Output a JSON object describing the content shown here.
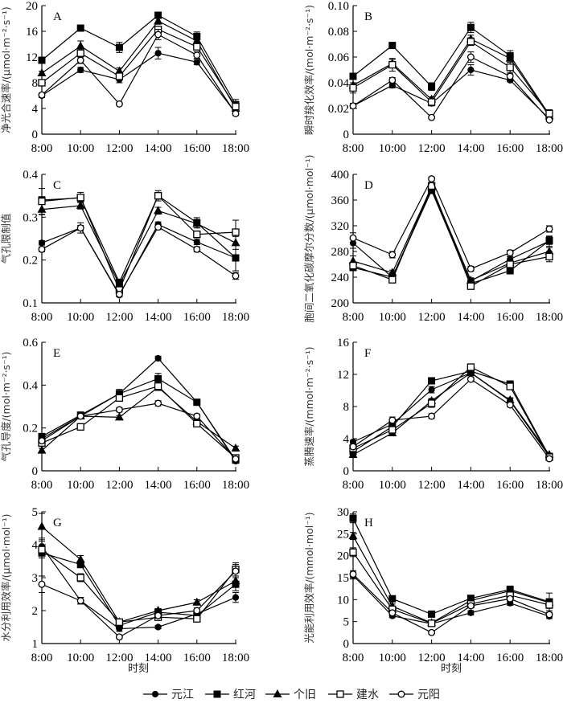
{
  "legend": [
    {
      "name": "元江",
      "marker": "filled-circle"
    },
    {
      "name": "红河",
      "marker": "filled-square"
    },
    {
      "name": "个旧",
      "marker": "filled-triangle"
    },
    {
      "name": "建水",
      "marker": "open-square"
    },
    {
      "name": "元阳",
      "marker": "open-circle"
    }
  ],
  "xlabel": "时刻",
  "chart_data": [
    {
      "type": "line",
      "panel": "A",
      "ylabel": "净光合速率/(μmol·m⁻²·s⁻¹)",
      "categories": [
        "8:00",
        "10:00",
        "12:00",
        "14:00",
        "16:00",
        "18:00"
      ],
      "ylim": [
        0,
        20
      ],
      "yticks": [
        0,
        4,
        8,
        12,
        16,
        20
      ],
      "ytick_labels": [
        "0",
        "4",
        "8",
        "12",
        "16",
        "20"
      ],
      "series": [
        {
          "name": "元江",
          "values": [
            6.0,
            10.0,
            8.5,
            12.6,
            11.2,
            3.3
          ],
          "errors": [
            0.3,
            0.4,
            0.5,
            0.9,
            0.4,
            0.3
          ]
        },
        {
          "name": "红河",
          "values": [
            11.5,
            16.5,
            13.5,
            18.5,
            15.2,
            4.6
          ],
          "errors": [
            0.3,
            0.4,
            0.8,
            0.5,
            0.7,
            0.8
          ]
        },
        {
          "name": "个旧",
          "values": [
            9.5,
            13.7,
            9.8,
            17.6,
            14.5,
            4.0
          ],
          "errors": [
            0.3,
            0.8,
            0.5,
            0.5,
            0.5,
            0.5
          ]
        },
        {
          "name": "建水",
          "values": [
            8.0,
            12.6,
            9.0,
            16.3,
            13.6,
            4.3
          ],
          "errors": [
            0.4,
            0.5,
            0.5,
            0.5,
            0.5,
            0.5
          ]
        },
        {
          "name": "元阳",
          "values": [
            6.1,
            11.5,
            4.7,
            15.5,
            12.3,
            3.2
          ],
          "errors": [
            0.3,
            0.5,
            0.2,
            0.8,
            0.5,
            0.3
          ]
        }
      ]
    },
    {
      "type": "line",
      "panel": "B",
      "ylabel": "瞬时羧化效率/(mol·m⁻²·s⁻¹)",
      "categories": [
        "8:00",
        "10:00",
        "12:00",
        "14:00",
        "16:00",
        "18:00"
      ],
      "ylim": [
        0,
        0.1
      ],
      "yticks": [
        0,
        0.02,
        0.04,
        0.06,
        0.08,
        0.1
      ],
      "ytick_labels": [
        "0",
        "0.02",
        "0.04",
        "0.06",
        "0.08",
        "0.10"
      ],
      "series": [
        {
          "name": "元江",
          "values": [
            0.022,
            0.038,
            0.024,
            0.05,
            0.042,
            0.012
          ],
          "errors": [
            0.002,
            0.002,
            0.002,
            0.004,
            0.001,
            0.002
          ]
        },
        {
          "name": "红河",
          "values": [
            0.045,
            0.069,
            0.037,
            0.083,
            0.061,
            0.015
          ],
          "errors": [
            0.002,
            0.002,
            0.003,
            0.004,
            0.004,
            0.003
          ]
        },
        {
          "name": "个旧",
          "values": [
            0.038,
            0.055,
            0.027,
            0.074,
            0.059,
            0.014
          ],
          "errors": [
            0.002,
            0.003,
            0.002,
            0.003,
            0.003,
            0.002
          ]
        },
        {
          "name": "建水",
          "values": [
            0.036,
            0.054,
            0.025,
            0.072,
            0.052,
            0.016
          ],
          "errors": [
            0.004,
            0.005,
            0.002,
            0.003,
            0.004,
            0.003
          ]
        },
        {
          "name": "元阳",
          "values": [
            0.022,
            0.042,
            0.013,
            0.06,
            0.045,
            0.011
          ],
          "errors": [
            0.002,
            0.002,
            0.001,
            0.004,
            0.002,
            0.001
          ]
        }
      ]
    },
    {
      "type": "line",
      "panel": "C",
      "ylabel": "气孔限制值",
      "categories": [
        "8:00",
        "10:00",
        "12:00",
        "14:00",
        "16:00",
        "18:00"
      ],
      "ylim": [
        0.1,
        0.4
      ],
      "yticks": [
        0.1,
        0.2,
        0.3,
        0.4
      ],
      "ytick_labels": [
        "0.1",
        "0.2",
        "0.3",
        "0.4"
      ],
      "series": [
        {
          "name": "元江",
          "values": [
            0.24,
            0.275,
            0.118,
            0.283,
            0.242,
            0.205
          ],
          "errors": [
            0.005,
            0.006,
            0.004,
            0.006,
            0.006,
            0.006
          ]
        },
        {
          "name": "红河",
          "values": [
            0.34,
            0.345,
            0.148,
            0.35,
            0.287,
            0.205
          ],
          "errors": [
            0.008,
            0.008,
            0.006,
            0.008,
            0.012,
            0.03
          ]
        },
        {
          "name": "个旧",
          "values": [
            0.318,
            0.327,
            0.143,
            0.315,
            0.285,
            0.24
          ],
          "errors": [
            0.012,
            0.008,
            0.006,
            0.008,
            0.01,
            0.015
          ]
        },
        {
          "name": "建水",
          "values": [
            0.337,
            0.346,
            0.13,
            0.35,
            0.26,
            0.265
          ],
          "errors": [
            0.03,
            0.012,
            0.005,
            0.012,
            0.008,
            0.028
          ]
        },
        {
          "name": "元阳",
          "values": [
            0.225,
            0.275,
            0.12,
            0.277,
            0.225,
            0.163
          ],
          "errors": [
            0.006,
            0.012,
            0.005,
            0.006,
            0.006,
            0.008
          ]
        }
      ]
    },
    {
      "type": "line",
      "panel": "D",
      "ylabel": "胞间二氧化碳摩尔分数/(μmol·mol⁻¹)",
      "categories": [
        "8:00",
        "10:00",
        "12:00",
        "14:00",
        "16:00",
        "18:00"
      ],
      "ylim": [
        200,
        400
      ],
      "yticks": [
        200,
        240,
        280,
        320,
        360,
        400
      ],
      "ytick_labels": [
        "200",
        "240",
        "280",
        "320",
        "360",
        "400"
      ],
      "series": [
        {
          "name": "元江",
          "values": [
            293,
            240,
            378,
            234,
            268,
            296
          ],
          "errors": [
            8,
            4,
            4,
            4,
            4,
            8
          ]
        },
        {
          "name": "红河",
          "values": [
            255,
            240,
            375,
            230,
            250,
            297
          ],
          "errors": [
            5,
            4,
            4,
            4,
            4,
            6
          ]
        },
        {
          "name": "个旧",
          "values": [
            265,
            247,
            380,
            235,
            262,
            280
          ],
          "errors": [
            8,
            4,
            4,
            4,
            4,
            6
          ]
        },
        {
          "name": "建水",
          "values": [
            258,
            236,
            382,
            226,
            260,
            272
          ],
          "errors": [
            5,
            4,
            4,
            4,
            4,
            8
          ]
        },
        {
          "name": "元阳",
          "values": [
            301,
            275,
            393,
            253,
            278,
            315
          ],
          "errors": [
            8,
            5,
            3,
            4,
            4,
            5
          ]
        }
      ]
    },
    {
      "type": "line",
      "panel": "E",
      "ylabel": "气孔导度/(mol·m⁻²·s⁻¹)",
      "categories": [
        "8:00",
        "10:00",
        "12:00",
        "14:00",
        "16:00",
        "18:00"
      ],
      "ylim": [
        0,
        0.6
      ],
      "yticks": [
        0,
        0.2,
        0.4,
        0.6
      ],
      "ytick_labels": [
        "0",
        "0.2",
        "0.4",
        "0.6"
      ],
      "series": [
        {
          "name": "元江",
          "values": [
            0.15,
            0.255,
            0.36,
            0.525,
            0.32,
            0.045
          ],
          "errors": [
            0.01,
            0.01,
            0.015,
            0.01,
            0.005,
            0.008
          ]
        },
        {
          "name": "红河",
          "values": [
            0.16,
            0.26,
            0.36,
            0.43,
            0.32,
            0.05
          ],
          "errors": [
            0.01,
            0.01,
            0.02,
            0.025,
            0.005,
            0.008
          ]
        },
        {
          "name": "个旧",
          "values": [
            0.095,
            0.255,
            0.25,
            0.39,
            0.23,
            0.105
          ],
          "errors": [
            0.01,
            0.01,
            0.008,
            0.015,
            0.01,
            0.01
          ]
        },
        {
          "name": "建水",
          "values": [
            0.13,
            0.205,
            0.34,
            0.395,
            0.22,
            0.06
          ],
          "errors": [
            0.01,
            0.01,
            0.015,
            0.015,
            0.01,
            0.01
          ]
        },
        {
          "name": "元阳",
          "values": [
            0.14,
            0.255,
            0.285,
            0.315,
            0.255,
            0.055
          ],
          "errors": [
            0.01,
            0.01,
            0.01,
            0.012,
            0.01,
            0.008
          ]
        }
      ]
    },
    {
      "type": "line",
      "panel": "F",
      "ylabel": "蒸腾速率/(mmol·m⁻²·s⁻¹)",
      "categories": [
        "8:00",
        "10:00",
        "12:00",
        "14:00",
        "16:00",
        "18:00"
      ],
      "ylim": [
        0,
        16
      ],
      "yticks": [
        0,
        4,
        8,
        12,
        16
      ],
      "ytick_labels": [
        "0",
        "4",
        "8",
        "12",
        "16"
      ],
      "series": [
        {
          "name": "元江",
          "values": [
            3.6,
            5.8,
            10.1,
            12.2,
            8.7,
            1.8
          ],
          "errors": [
            0.2,
            0.3,
            0.4,
            0.3,
            0.3,
            0.2
          ]
        },
        {
          "name": "红河",
          "values": [
            2.4,
            5.5,
            11.2,
            12.4,
            10.8,
            1.8
          ],
          "errors": [
            0.2,
            0.3,
            0.4,
            0.3,
            0.2,
            0.2
          ]
        },
        {
          "name": "个旧",
          "values": [
            2.0,
            4.7,
            8.7,
            12.2,
            8.8,
            2.0
          ],
          "errors": [
            0.2,
            0.3,
            0.3,
            0.3,
            0.3,
            0.2
          ]
        },
        {
          "name": "建水",
          "values": [
            2.8,
            5.1,
            8.4,
            12.9,
            10.5,
            1.7
          ],
          "errors": [
            0.2,
            0.3,
            0.5,
            0.4,
            0.3,
            0.2
          ]
        },
        {
          "name": "元阳",
          "values": [
            3.0,
            6.3,
            6.8,
            11.4,
            8.2,
            1.5
          ],
          "errors": [
            0.2,
            0.4,
            0.3,
            0.3,
            0.2,
            0.2
          ]
        }
      ]
    },
    {
      "type": "line",
      "panel": "G",
      "ylabel": "水分利用效率/(μmol·mol⁻¹)",
      "categories": [
        "8:00",
        "10:00",
        "12:00",
        "14:00",
        "16:00",
        "18:00"
      ],
      "ylim": [
        1,
        5
      ],
      "yticks": [
        1,
        2,
        3,
        4,
        5
      ],
      "ytick_labels": [
        "1",
        "2",
        "3",
        "4",
        "5"
      ],
      "series": [
        {
          "name": "元江",
          "values": [
            3.95,
            2.3,
            1.45,
            1.5,
            1.9,
            2.4
          ],
          "errors": [
            0.25,
            0.1,
            0.08,
            0.05,
            0.08,
            0.15
          ]
        },
        {
          "name": "红河",
          "values": [
            3.75,
            3.4,
            1.55,
            1.95,
            1.85,
            2.8
          ],
          "errors": [
            0.15,
            0.1,
            0.08,
            0.08,
            0.08,
            0.2
          ]
        },
        {
          "name": "个旧",
          "values": [
            4.55,
            3.55,
            1.65,
            2.0,
            2.25,
            2.9
          ],
          "errors": [
            0.4,
            0.12,
            0.08,
            0.06,
            0.08,
            0.15
          ]
        },
        {
          "name": "建水",
          "values": [
            3.85,
            3.0,
            1.65,
            1.8,
            1.75,
            3.25
          ],
          "errors": [
            0.25,
            0.12,
            0.08,
            0.08,
            0.06,
            0.2
          ]
        },
        {
          "name": "元阳",
          "values": [
            2.8,
            2.3,
            1.2,
            1.85,
            2.0,
            3.2
          ],
          "errors": [
            0.25,
            0.1,
            0.05,
            0.08,
            0.08,
            0.2
          ]
        }
      ]
    },
    {
      "type": "line",
      "panel": "H",
      "ylabel": "光能利用效率/(mmol·mol⁻¹)",
      "categories": [
        "8:00",
        "10:00",
        "12:00",
        "14:00",
        "16:00",
        "18:00"
      ],
      "ylim": [
        0,
        30
      ],
      "yticks": [
        0,
        5,
        10,
        15,
        20,
        25,
        30
      ],
      "ytick_labels": [
        "0",
        "5",
        "10",
        "15",
        "20",
        "25",
        "30"
      ],
      "series": [
        {
          "name": "元江",
          "values": [
            15.5,
            6.3,
            4.5,
            7.0,
            9.2,
            6.2
          ],
          "errors": [
            0.8,
            0.4,
            0.4,
            0.5,
            0.5,
            0.5
          ]
        },
        {
          "name": "红河",
          "values": [
            28.5,
            10.2,
            6.7,
            10.3,
            12.3,
            9.5
          ],
          "errors": [
            1.0,
            0.5,
            0.5,
            0.5,
            0.8,
            2.0
          ]
        },
        {
          "name": "个旧",
          "values": [
            24.5,
            8.5,
            4.7,
            9.8,
            12.0,
            9.3
          ],
          "errors": [
            0.8,
            0.5,
            0.4,
            0.5,
            0.6,
            0.8
          ]
        },
        {
          "name": "建水",
          "values": [
            20.8,
            7.8,
            4.6,
            9.0,
            11.0,
            8.8
          ],
          "errors": [
            1.0,
            0.5,
            0.4,
            0.5,
            0.6,
            0.8
          ]
        },
        {
          "name": "元阳",
          "values": [
            15.8,
            7.0,
            2.5,
            8.6,
            10.2,
            6.6
          ],
          "errors": [
            0.8,
            0.4,
            0.3,
            0.5,
            0.5,
            0.5
          ]
        }
      ]
    }
  ]
}
